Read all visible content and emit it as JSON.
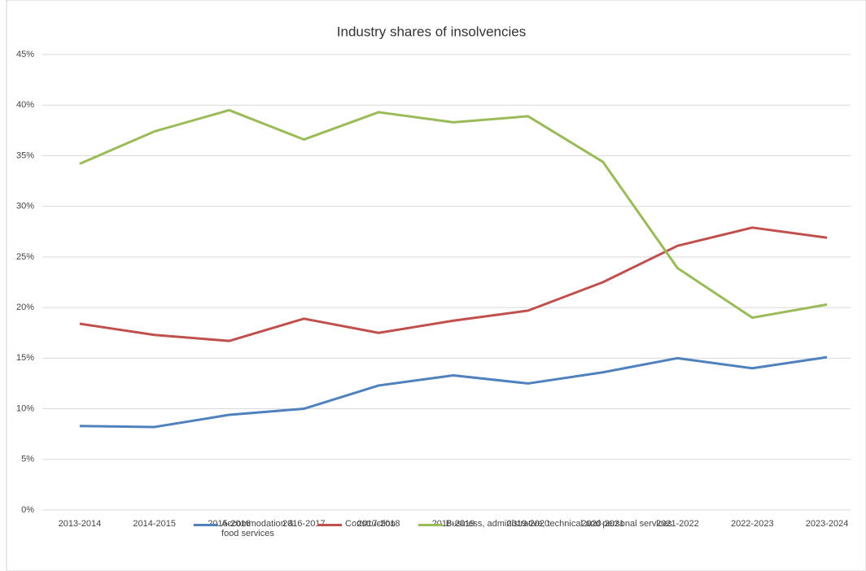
{
  "chart_data": {
    "type": "line",
    "title": "Industry shares of insolvencies",
    "categories": [
      "2013-2014",
      "2014-2015",
      "2015-2016",
      "2016-2017",
      "2017-2018",
      "2018-2019",
      "2019-2020",
      "2020-2021",
      "2021-2022",
      "2022-2023",
      "2023-2024"
    ],
    "series": [
      {
        "name": "Accommodation & food services",
        "color": "#4f81bd",
        "values": [
          8.3,
          8.2,
          9.4,
          10.0,
          12.3,
          13.3,
          12.5,
          13.6,
          15.0,
          14.0,
          15.1
        ]
      },
      {
        "name": "Construction",
        "color": "#c0504d",
        "values": [
          18.4,
          17.3,
          16.7,
          18.9,
          17.5,
          18.7,
          19.7,
          22.5,
          26.1,
          27.9,
          26.9
        ]
      },
      {
        "name": "Business, administrative, technical and personal services",
        "color": "#9bbb59",
        "values": [
          34.2,
          37.4,
          39.5,
          36.6,
          39.3,
          38.3,
          38.9,
          34.4,
          23.9,
          19.0,
          20.3
        ]
      }
    ],
    "ylim": [
      0,
      45
    ],
    "yticks": [
      {
        "value": 0,
        "label": "0%"
      },
      {
        "value": 5,
        "label": "5%"
      },
      {
        "value": 10,
        "label": "10%"
      },
      {
        "value": 15,
        "label": "15%"
      },
      {
        "value": 20,
        "label": "20%"
      },
      {
        "value": 25,
        "label": "25%"
      },
      {
        "value": 30,
        "label": "30%"
      },
      {
        "value": 35,
        "label": "35%"
      },
      {
        "value": 40,
        "label": "40%"
      },
      {
        "value": 45,
        "label": "45%"
      }
    ],
    "grid": true,
    "legend": "bottom"
  }
}
